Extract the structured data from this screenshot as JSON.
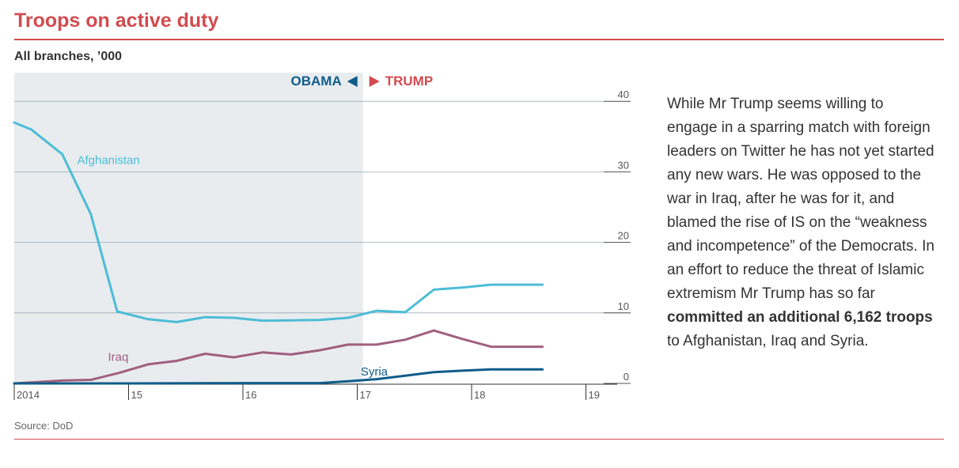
{
  "header": {
    "title": "Troops on active duty",
    "subtitle": "All branches, ’000"
  },
  "footer": {
    "source": "Source: DoD"
  },
  "annotation": {
    "text_before": "While Mr Trump seems willing to engage in a sparring match with foreign leaders on Twitter he has not yet started any new wars. He was opposed to the war in Iraq, after he was for it, and blamed the rise of IS on the “weakness and incompetence” of the Democrats. In an effort to reduce the threat of Islamic extremism Mr Trump has so far ",
    "text_bold": "committed an additional 6,162 troops",
    "text_after": " to Afghanistan, Iraq and Syria."
  },
  "colors": {
    "afghanistan": "#4cbdd6",
    "iraq": "#a0607e",
    "syria": "#0f5c8a",
    "obama": "#0f5c8a",
    "trump": "#d24b4f",
    "shade": "#e8ecef",
    "grid": "#9aaab5"
  },
  "chart_data": {
    "type": "line",
    "title": "Troops on active duty",
    "subtitle": "All branches, ’000",
    "xlabel": "",
    "ylabel": "",
    "xlim": [
      2014,
      2019.2
    ],
    "ylim": [
      0,
      40
    ],
    "yticks": [
      0,
      10,
      20,
      30,
      40
    ],
    "xticks": [
      {
        "value": 2014,
        "label": "2014"
      },
      {
        "value": 2015,
        "label": "15"
      },
      {
        "value": 2016,
        "label": "16"
      },
      {
        "value": 2017,
        "label": "17"
      },
      {
        "value": 2018,
        "label": "18"
      },
      {
        "value": 2019,
        "label": "19"
      }
    ],
    "grid": true,
    "shaded_period": {
      "from": 2014,
      "to": 2017.05
    },
    "period_labels": {
      "left": "OBAMA",
      "right": "TRUMP",
      "split_at": 2017.05
    },
    "series": [
      {
        "name": "Afghanistan",
        "label_at": [
          2014.55,
          31.1
        ],
        "x": [
          2014.0,
          2014.15,
          2014.42,
          2014.67,
          2014.9,
          2015.17,
          2015.42,
          2015.67,
          2015.92,
          2016.17,
          2016.42,
          2016.67,
          2016.92,
          2017.17,
          2017.42,
          2017.67,
          2017.92,
          2018.17,
          2018.42,
          2018.62
        ],
        "values": [
          37.0,
          36.0,
          32.5,
          24.0,
          10.2,
          9.1,
          8.7,
          9.4,
          9.3,
          8.9,
          8.95,
          9.0,
          9.3,
          10.3,
          10.1,
          13.3,
          13.6,
          14.0,
          14.0,
          14.0
        ]
      },
      {
        "name": "Iraq",
        "label_at": [
          2014.82,
          3.2
        ],
        "x": [
          2014.0,
          2014.42,
          2014.67,
          2014.92,
          2015.17,
          2015.42,
          2015.67,
          2015.92,
          2016.17,
          2016.42,
          2016.67,
          2016.92,
          2017.17,
          2017.42,
          2017.67,
          2017.92,
          2018.17,
          2018.42,
          2018.62
        ],
        "values": [
          0.0,
          0.4,
          0.5,
          1.5,
          2.7,
          3.2,
          4.2,
          3.7,
          4.4,
          4.1,
          4.7,
          5.5,
          5.5,
          6.2,
          7.5,
          6.3,
          5.2,
          5.2,
          5.2
        ]
      },
      {
        "name": "Syria",
        "label_at": [
          2017.03,
          1.1
        ],
        "x": [
          2014.0,
          2015.0,
          2016.0,
          2016.67,
          2016.92,
          2017.17,
          2017.42,
          2017.67,
          2017.92,
          2018.17,
          2018.42,
          2018.62
        ],
        "values": [
          0.0,
          0.0,
          0.05,
          0.05,
          0.3,
          0.6,
          1.1,
          1.6,
          1.8,
          2.0,
          2.0,
          2.0
        ]
      }
    ]
  }
}
